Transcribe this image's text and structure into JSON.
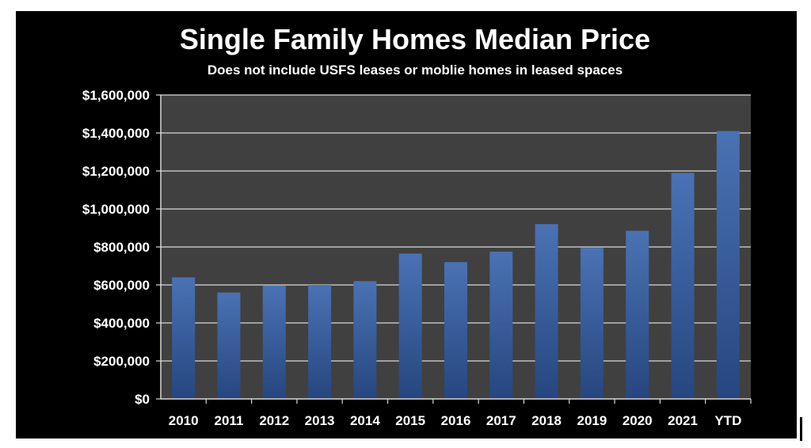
{
  "chart_data": {
    "type": "bar",
    "title": "Single Family Homes Median Price",
    "subtitle": "Does not include USFS leases or moblie homes in leased spaces",
    "xlabel": "",
    "ylabel": "",
    "categories": [
      "2010",
      "2011",
      "2012",
      "2013",
      "2014",
      "2015",
      "2016",
      "2017",
      "2018",
      "2019",
      "2020",
      "2021",
      "YTD"
    ],
    "values": [
      640000,
      560000,
      597000,
      600000,
      620000,
      765000,
      720000,
      775000,
      920000,
      795000,
      885000,
      1190000,
      1410000
    ],
    "ylim": [
      0,
      1600000
    ],
    "yticks": [
      "$0",
      "$200,000",
      "$400,000",
      "$600,000",
      "$800,000",
      "$1,000,000",
      "$1,200,000",
      "$1,400,000",
      "$1,600,000"
    ],
    "grid": true,
    "legend": "none",
    "colors": {
      "background": "#000000",
      "plot_area": "#404040",
      "bar_top": "#4a72b4",
      "bar_bottom": "#26467f",
      "gridline": "#d9d9d9",
      "text": "#ffffff"
    }
  }
}
